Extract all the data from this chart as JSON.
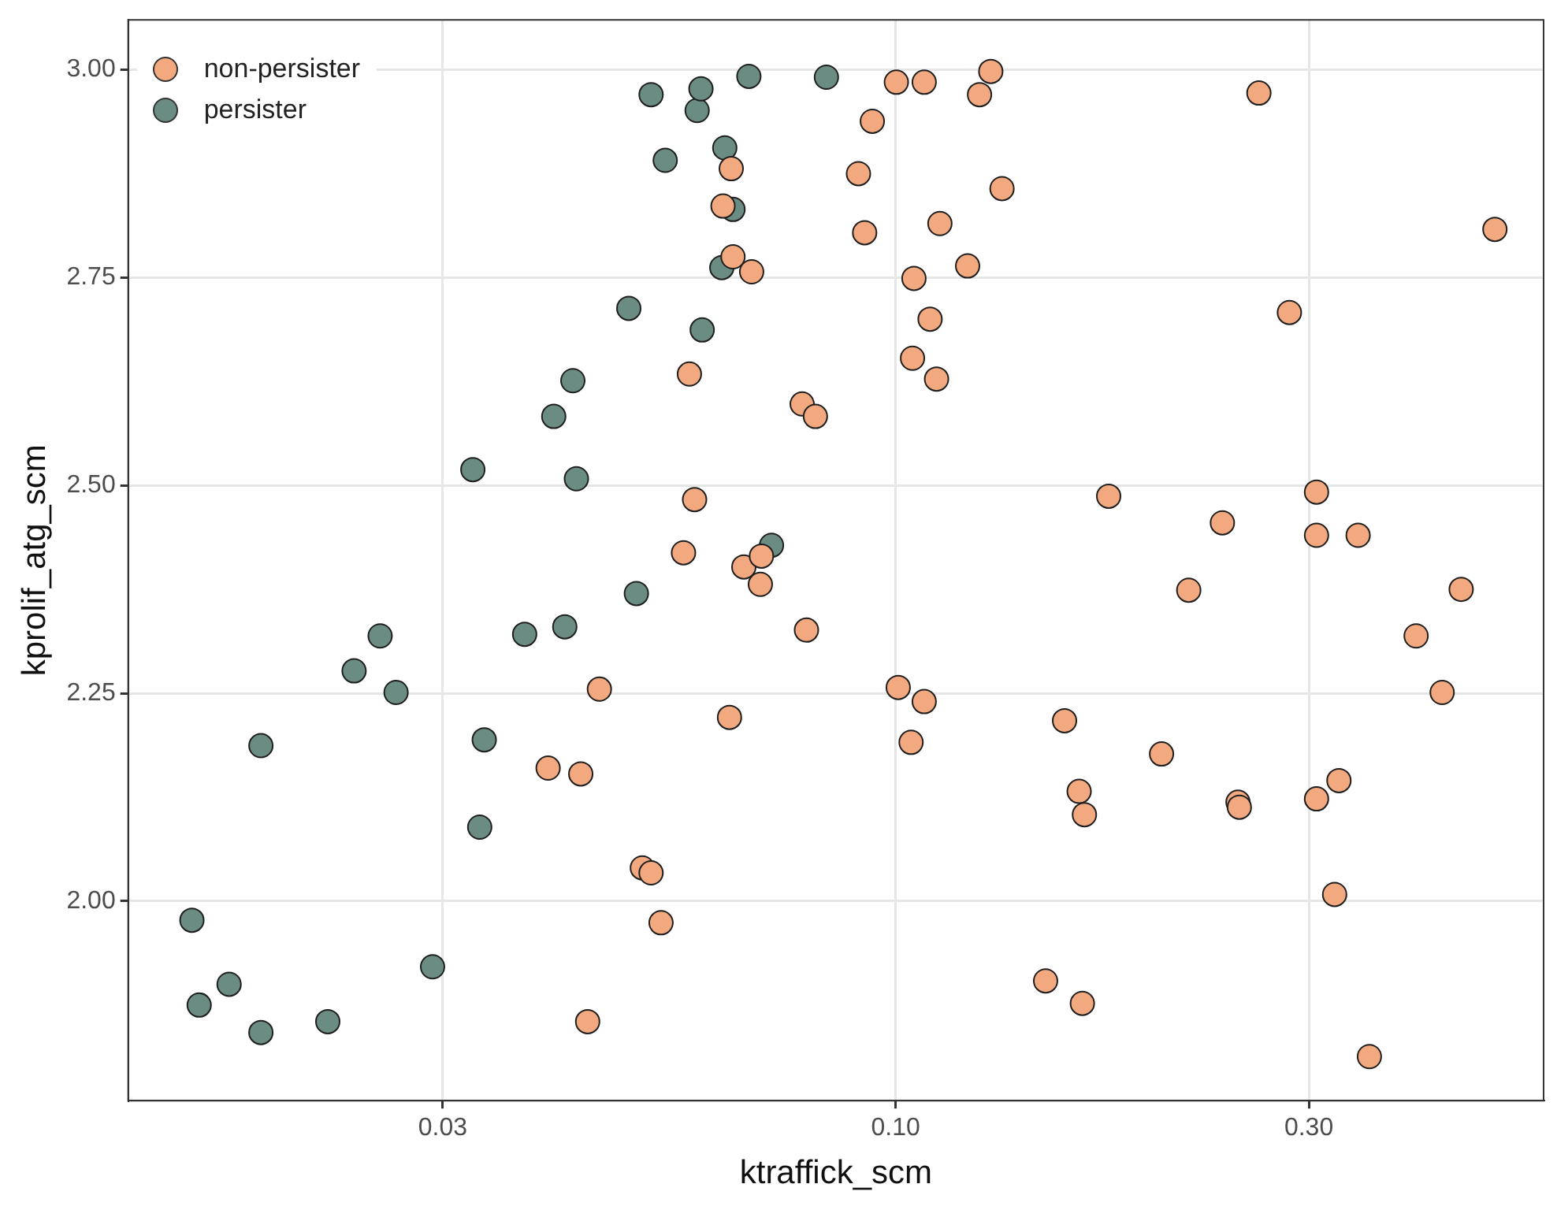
{
  "chart_data": {
    "type": "scatter",
    "xlabel": "ktraffick_scm",
    "ylabel": "kprolif_atg_scm",
    "log": "x",
    "xlim": [
      0.013,
      0.56
    ],
    "ylim": [
      1.76,
      3.06
    ],
    "xticks": [
      0.03,
      {
        "value": 0.1,
        "label": "0.10"
      },
      {
        "value": 0.3,
        "label": "0.30"
      }
    ],
    "yticks": [
      {
        "value": 2,
        "label": "2.00"
      },
      2.25,
      {
        "value": 2.5,
        "label": "2.50"
      },
      2.75,
      {
        "value": 3,
        "label": "3.00"
      }
    ],
    "grid": true,
    "legend": "top left",
    "marker": "circle",
    "series": [
      {
        "name": "non-persister",
        "color": "#f2a97f",
        "x": [
          0.0441,
          0.0455,
          0.0397,
          0.0433,
          0.051,
          0.0522,
          0.0536,
          0.0569,
          0.0578,
          0.0586,
          0.0632,
          0.0646,
          0.0649,
          0.0643,
          0.0682,
          0.0668,
          0.0698,
          0.07,
          0.0789,
          0.078,
          0.0808,
          0.0906,
          0.0921,
          0.094,
          0.1002,
          0.1079,
          0.125,
          0.1288,
          0.1327,
          0.1125,
          0.1211,
          0.105,
          0.1096,
          0.1046,
          0.1115,
          0.1007,
          0.1079,
          0.1042,
          0.1567,
          0.1629,
          0.1652,
          0.149,
          0.1643,
          0.1762,
          0.2028,
          0.218,
          0.2384,
          0.2485,
          0.2494,
          0.2627,
          0.2849,
          0.3062,
          0.3062,
          0.342,
          0.3062,
          0.325,
          0.3213,
          0.3524,
          0.399,
          0.4276,
          0.4498,
          0.492
        ],
        "values": [
          1.855,
          2.255,
          2.16,
          2.153,
          2.04,
          2.034,
          1.974,
          2.419,
          2.634,
          2.483,
          2.836,
          2.881,
          2.775,
          2.221,
          2.757,
          2.402,
          2.381,
          2.415,
          2.326,
          2.598,
          2.583,
          2.875,
          2.804,
          2.938,
          2.985,
          2.985,
          2.97,
          2.998,
          2.857,
          2.815,
          2.764,
          2.749,
          2.7,
          2.653,
          2.628,
          2.257,
          2.24,
          2.191,
          2.217,
          2.132,
          2.104,
          1.904,
          1.877,
          2.487,
          2.177,
          2.374,
          2.455,
          2.119,
          2.113,
          2.972,
          2.708,
          2.492,
          2.44,
          2.44,
          2.123,
          2.145,
          2.008,
          1.813,
          2.319,
          2.251,
          2.375,
          2.808
        ]
      },
      {
        "name": "persister",
        "color": "#6b8c83",
        "x": [
          0.0154,
          0.0157,
          0.017,
          0.0185,
          0.0185,
          0.0221,
          0.0237,
          0.0254,
          0.0265,
          0.0292,
          0.0325,
          0.0335,
          0.0331,
          0.0373,
          0.0403,
          0.0415,
          0.0424,
          0.0428,
          0.0492,
          0.0502,
          0.0522,
          0.0542,
          0.059,
          0.0596,
          0.0598,
          0.063,
          0.0635,
          0.0649,
          0.0677,
          0.0719,
          0.0832
        ],
        "values": [
          1.977,
          1.875,
          1.9,
          1.842,
          2.187,
          1.855,
          2.277,
          2.319,
          2.251,
          1.921,
          2.519,
          2.194,
          2.089,
          2.321,
          2.583,
          2.33,
          2.626,
          2.508,
          2.713,
          2.37,
          2.97,
          2.891,
          2.951,
          2.977,
          2.687,
          2.762,
          2.906,
          2.832,
          2.992,
          2.428,
          2.991
        ]
      }
    ]
  }
}
